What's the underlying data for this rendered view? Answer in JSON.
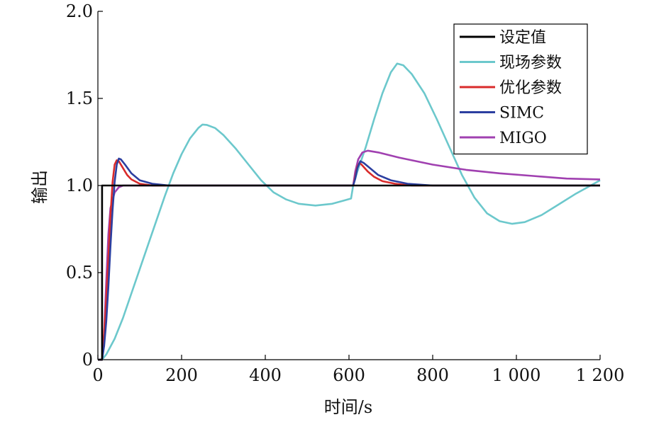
{
  "chart_data": {
    "type": "line",
    "xlabel": "时间/s",
    "ylabel": "输出",
    "xlim": [
      0,
      1200
    ],
    "ylim": [
      0,
      2.0
    ],
    "grid": false,
    "legend_position": "top-right",
    "x_ticks": [
      0,
      200,
      400,
      600,
      800,
      1000,
      1200
    ],
    "x_tick_labels": [
      "0",
      "200",
      "400",
      "600",
      "800",
      "1 000",
      "1 200"
    ],
    "y_ticks": [
      0,
      0.5,
      1.0,
      1.5,
      2.0
    ],
    "y_tick_labels": [
      "0",
      "0.5",
      "1.0",
      "1.5",
      "2.0"
    ],
    "series": [
      {
        "name": "设定值",
        "color": "#000000",
        "points": [
          [
            0,
            0
          ],
          [
            10,
            0
          ],
          [
            10,
            1.0
          ],
          [
            1200,
            1.0
          ]
        ]
      },
      {
        "name": "现场参数",
        "color": "#6cc8cc",
        "points": [
          [
            0,
            0
          ],
          [
            10,
            0
          ],
          [
            20,
            0.03
          ],
          [
            40,
            0.12
          ],
          [
            60,
            0.24
          ],
          [
            80,
            0.38
          ],
          [
            100,
            0.52
          ],
          [
            120,
            0.66
          ],
          [
            140,
            0.8
          ],
          [
            160,
            0.94
          ],
          [
            180,
            1.07
          ],
          [
            200,
            1.18
          ],
          [
            220,
            1.27
          ],
          [
            240,
            1.33
          ],
          [
            250,
            1.35
          ],
          [
            260,
            1.348
          ],
          [
            280,
            1.33
          ],
          [
            300,
            1.29
          ],
          [
            330,
            1.21
          ],
          [
            360,
            1.12
          ],
          [
            390,
            1.03
          ],
          [
            420,
            0.96
          ],
          [
            450,
            0.92
          ],
          [
            480,
            0.895
          ],
          [
            520,
            0.885
          ],
          [
            560,
            0.895
          ],
          [
            590,
            0.915
          ],
          [
            605,
            0.925
          ],
          [
            610,
            1.0
          ],
          [
            620,
            1.08
          ],
          [
            640,
            1.22
          ],
          [
            660,
            1.38
          ],
          [
            680,
            1.53
          ],
          [
            700,
            1.65
          ],
          [
            715,
            1.7
          ],
          [
            730,
            1.69
          ],
          [
            750,
            1.64
          ],
          [
            780,
            1.53
          ],
          [
            810,
            1.38
          ],
          [
            840,
            1.22
          ],
          [
            870,
            1.06
          ],
          [
            900,
            0.93
          ],
          [
            930,
            0.84
          ],
          [
            960,
            0.795
          ],
          [
            990,
            0.78
          ],
          [
            1020,
            0.79
          ],
          [
            1060,
            0.83
          ],
          [
            1100,
            0.89
          ],
          [
            1140,
            0.95
          ],
          [
            1170,
            0.99
          ],
          [
            1200,
            1.03
          ]
        ]
      },
      {
        "name": "优化参数",
        "color": "#d92b2b",
        "points": [
          [
            0,
            0
          ],
          [
            10,
            0
          ],
          [
            15,
            0.15
          ],
          [
            20,
            0.35
          ],
          [
            25,
            0.58
          ],
          [
            30,
            0.82
          ],
          [
            35,
            1.02
          ],
          [
            40,
            1.12
          ],
          [
            45,
            1.145
          ],
          [
            50,
            1.14
          ],
          [
            60,
            1.1
          ],
          [
            70,
            1.06
          ],
          [
            80,
            1.035
          ],
          [
            100,
            1.01
          ],
          [
            130,
            1.0
          ],
          [
            610,
            1.0
          ],
          [
            615,
            1.05
          ],
          [
            620,
            1.11
          ],
          [
            625,
            1.13
          ],
          [
            630,
            1.12
          ],
          [
            645,
            1.08
          ],
          [
            660,
            1.05
          ],
          [
            680,
            1.025
          ],
          [
            710,
            1.01
          ],
          [
            750,
            1.0
          ],
          [
            1200,
            1.0
          ]
        ]
      },
      {
        "name": "SIMC",
        "color": "#2c3fa0",
        "points": [
          [
            0,
            0
          ],
          [
            10,
            0
          ],
          [
            15,
            0.08
          ],
          [
            20,
            0.22
          ],
          [
            25,
            0.42
          ],
          [
            30,
            0.65
          ],
          [
            35,
            0.86
          ],
          [
            40,
            1.02
          ],
          [
            45,
            1.12
          ],
          [
            50,
            1.155
          ],
          [
            55,
            1.15
          ],
          [
            65,
            1.12
          ],
          [
            80,
            1.07
          ],
          [
            100,
            1.03
          ],
          [
            130,
            1.01
          ],
          [
            170,
            1.0
          ],
          [
            610,
            1.0
          ],
          [
            615,
            1.04
          ],
          [
            620,
            1.1
          ],
          [
            627,
            1.14
          ],
          [
            635,
            1.13
          ],
          [
            650,
            1.1
          ],
          [
            670,
            1.06
          ],
          [
            700,
            1.03
          ],
          [
            740,
            1.01
          ],
          [
            800,
            1.0
          ],
          [
            1200,
            1.0
          ]
        ]
      },
      {
        "name": "MIGO",
        "color": "#a040b0",
        "points": [
          [
            0,
            0
          ],
          [
            10,
            0
          ],
          [
            15,
            0.15
          ],
          [
            20,
            0.45
          ],
          [
            25,
            0.72
          ],
          [
            30,
            0.87
          ],
          [
            40,
            0.96
          ],
          [
            50,
            0.99
          ],
          [
            60,
            1.0
          ],
          [
            610,
            1.0
          ],
          [
            615,
            1.08
          ],
          [
            622,
            1.15
          ],
          [
            632,
            1.19
          ],
          [
            645,
            1.2
          ],
          [
            670,
            1.19
          ],
          [
            720,
            1.16
          ],
          [
            800,
            1.12
          ],
          [
            880,
            1.09
          ],
          [
            960,
            1.07
          ],
          [
            1040,
            1.055
          ],
          [
            1120,
            1.04
          ],
          [
            1200,
            1.035
          ]
        ]
      }
    ]
  }
}
